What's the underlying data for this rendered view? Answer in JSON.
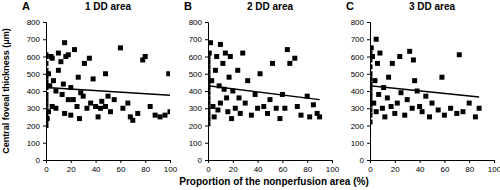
{
  "chart_data": [
    {
      "type": "scatter",
      "label": "A",
      "title": "1 DD area",
      "ylabel": "Central foveal thickness (μm)",
      "color": "#000000",
      "marker": "square",
      "xlim": [
        0,
        100
      ],
      "xticks": [
        0,
        20,
        40,
        60,
        80,
        100
      ],
      "ylim": [
        0,
        800
      ],
      "yticks": [
        0,
        100,
        200,
        300,
        400,
        500,
        600,
        700,
        800
      ],
      "x": [
        0,
        0,
        0,
        0,
        0,
        0,
        0,
        0,
        0,
        0,
        0,
        0,
        0,
        0,
        1,
        2,
        2,
        3,
        4,
        5,
        5,
        6,
        8,
        8,
        10,
        10,
        12,
        13,
        14,
        15,
        15,
        16,
        18,
        18,
        20,
        20,
        22,
        23,
        25,
        26,
        27,
        28,
        30,
        31,
        33,
        35,
        36,
        38,
        40,
        42,
        44,
        45,
        48,
        48,
        50,
        52,
        55,
        60,
        62,
        66,
        68,
        70,
        74,
        78,
        80,
        84,
        88,
        92,
        96,
        99,
        100
      ],
      "values": [
        200,
        230,
        260,
        290,
        320,
        350,
        380,
        420,
        450,
        480,
        520,
        560,
        600,
        610,
        240,
        280,
        500,
        430,
        600,
        590,
        310,
        460,
        300,
        400,
        620,
        520,
        570,
        380,
        440,
        680,
        270,
        600,
        610,
        350,
        420,
        260,
        350,
        640,
        310,
        480,
        240,
        390,
        370,
        560,
        300,
        590,
        330,
        470,
        310,
        250,
        300,
        340,
        500,
        310,
        370,
        280,
        350,
        650,
        300,
        330,
        250,
        230,
        270,
        580,
        600,
        310,
        260,
        250,
        260,
        500,
        280
      ],
      "trend_line": {
        "x": [
          0,
          100
        ],
        "values": [
          420,
          375
        ]
      }
    },
    {
      "type": "scatter",
      "label": "B",
      "title": "2 DD area",
      "xlabel": "Proportion of the nonperfusion area (%)",
      "color": "#000000",
      "marker": "square",
      "xlim": [
        0,
        100
      ],
      "xticks": [
        0,
        20,
        40,
        60,
        80,
        100
      ],
      "ylim": [
        0,
        800
      ],
      "yticks": [
        0,
        100,
        200,
        300,
        400,
        500,
        600,
        700,
        800
      ],
      "x": [
        0,
        0,
        0,
        0,
        0,
        0,
        0,
        0,
        0,
        0,
        0,
        0,
        0,
        0,
        1,
        2,
        3,
        4,
        5,
        6,
        7,
        8,
        9,
        10,
        10,
        12,
        13,
        14,
        15,
        16,
        17,
        18,
        19,
        20,
        22,
        24,
        25,
        26,
        28,
        30,
        32,
        35,
        38,
        40,
        42,
        45,
        48,
        50,
        52,
        55,
        58,
        60,
        62,
        64,
        66,
        70,
        72,
        75,
        80,
        82,
        85,
        88,
        90
      ],
      "values": [
        210,
        240,
        270,
        300,
        330,
        360,
        390,
        420,
        450,
        480,
        510,
        540,
        570,
        600,
        620,
        680,
        460,
        310,
        250,
        520,
        600,
        290,
        430,
        670,
        330,
        560,
        410,
        620,
        360,
        280,
        480,
        600,
        240,
        400,
        300,
        520,
        360,
        270,
        620,
        330,
        460,
        260,
        380,
        300,
        500,
        310,
        270,
        350,
        560,
        300,
        240,
        380,
        300,
        640,
        560,
        590,
        310,
        260,
        370,
        250,
        320,
        270,
        250
      ],
      "trend_line": {
        "x": [
          0,
          90
        ],
        "values": [
          430,
          350
        ]
      }
    },
    {
      "type": "scatter",
      "label": "C",
      "title": "3 DD area",
      "color": "#000000",
      "marker": "square",
      "xlim": [
        0,
        100
      ],
      "xticks": [
        0,
        20,
        40,
        60,
        80,
        100
      ],
      "ylim": [
        0,
        800
      ],
      "yticks": [
        0,
        100,
        200,
        300,
        400,
        500,
        600,
        700,
        800
      ],
      "x": [
        0,
        0,
        0,
        0,
        0,
        0,
        0,
        0,
        0,
        0,
        0,
        0,
        0,
        1,
        2,
        3,
        4,
        5,
        5,
        6,
        7,
        8,
        10,
        11,
        12,
        14,
        15,
        17,
        18,
        20,
        22,
        24,
        25,
        28,
        30,
        32,
        34,
        35,
        36,
        38,
        40,
        42,
        45,
        48,
        50,
        55,
        58,
        60,
        65,
        70,
        72,
        75,
        80,
        85,
        88
      ],
      "values": [
        220,
        260,
        290,
        320,
        350,
        380,
        410,
        440,
        470,
        500,
        540,
        580,
        620,
        650,
        600,
        330,
        460,
        700,
        280,
        560,
        380,
        620,
        300,
        420,
        250,
        360,
        480,
        310,
        560,
        270,
        330,
        600,
        390,
        260,
        350,
        630,
        300,
        580,
        460,
        400,
        310,
        280,
        370,
        250,
        330,
        290,
        480,
        260,
        300,
        270,
        610,
        280,
        330,
        250,
        300
      ],
      "trend_line": {
        "x": [
          0,
          88
        ],
        "values": [
          430,
          365
        ]
      }
    }
  ]
}
